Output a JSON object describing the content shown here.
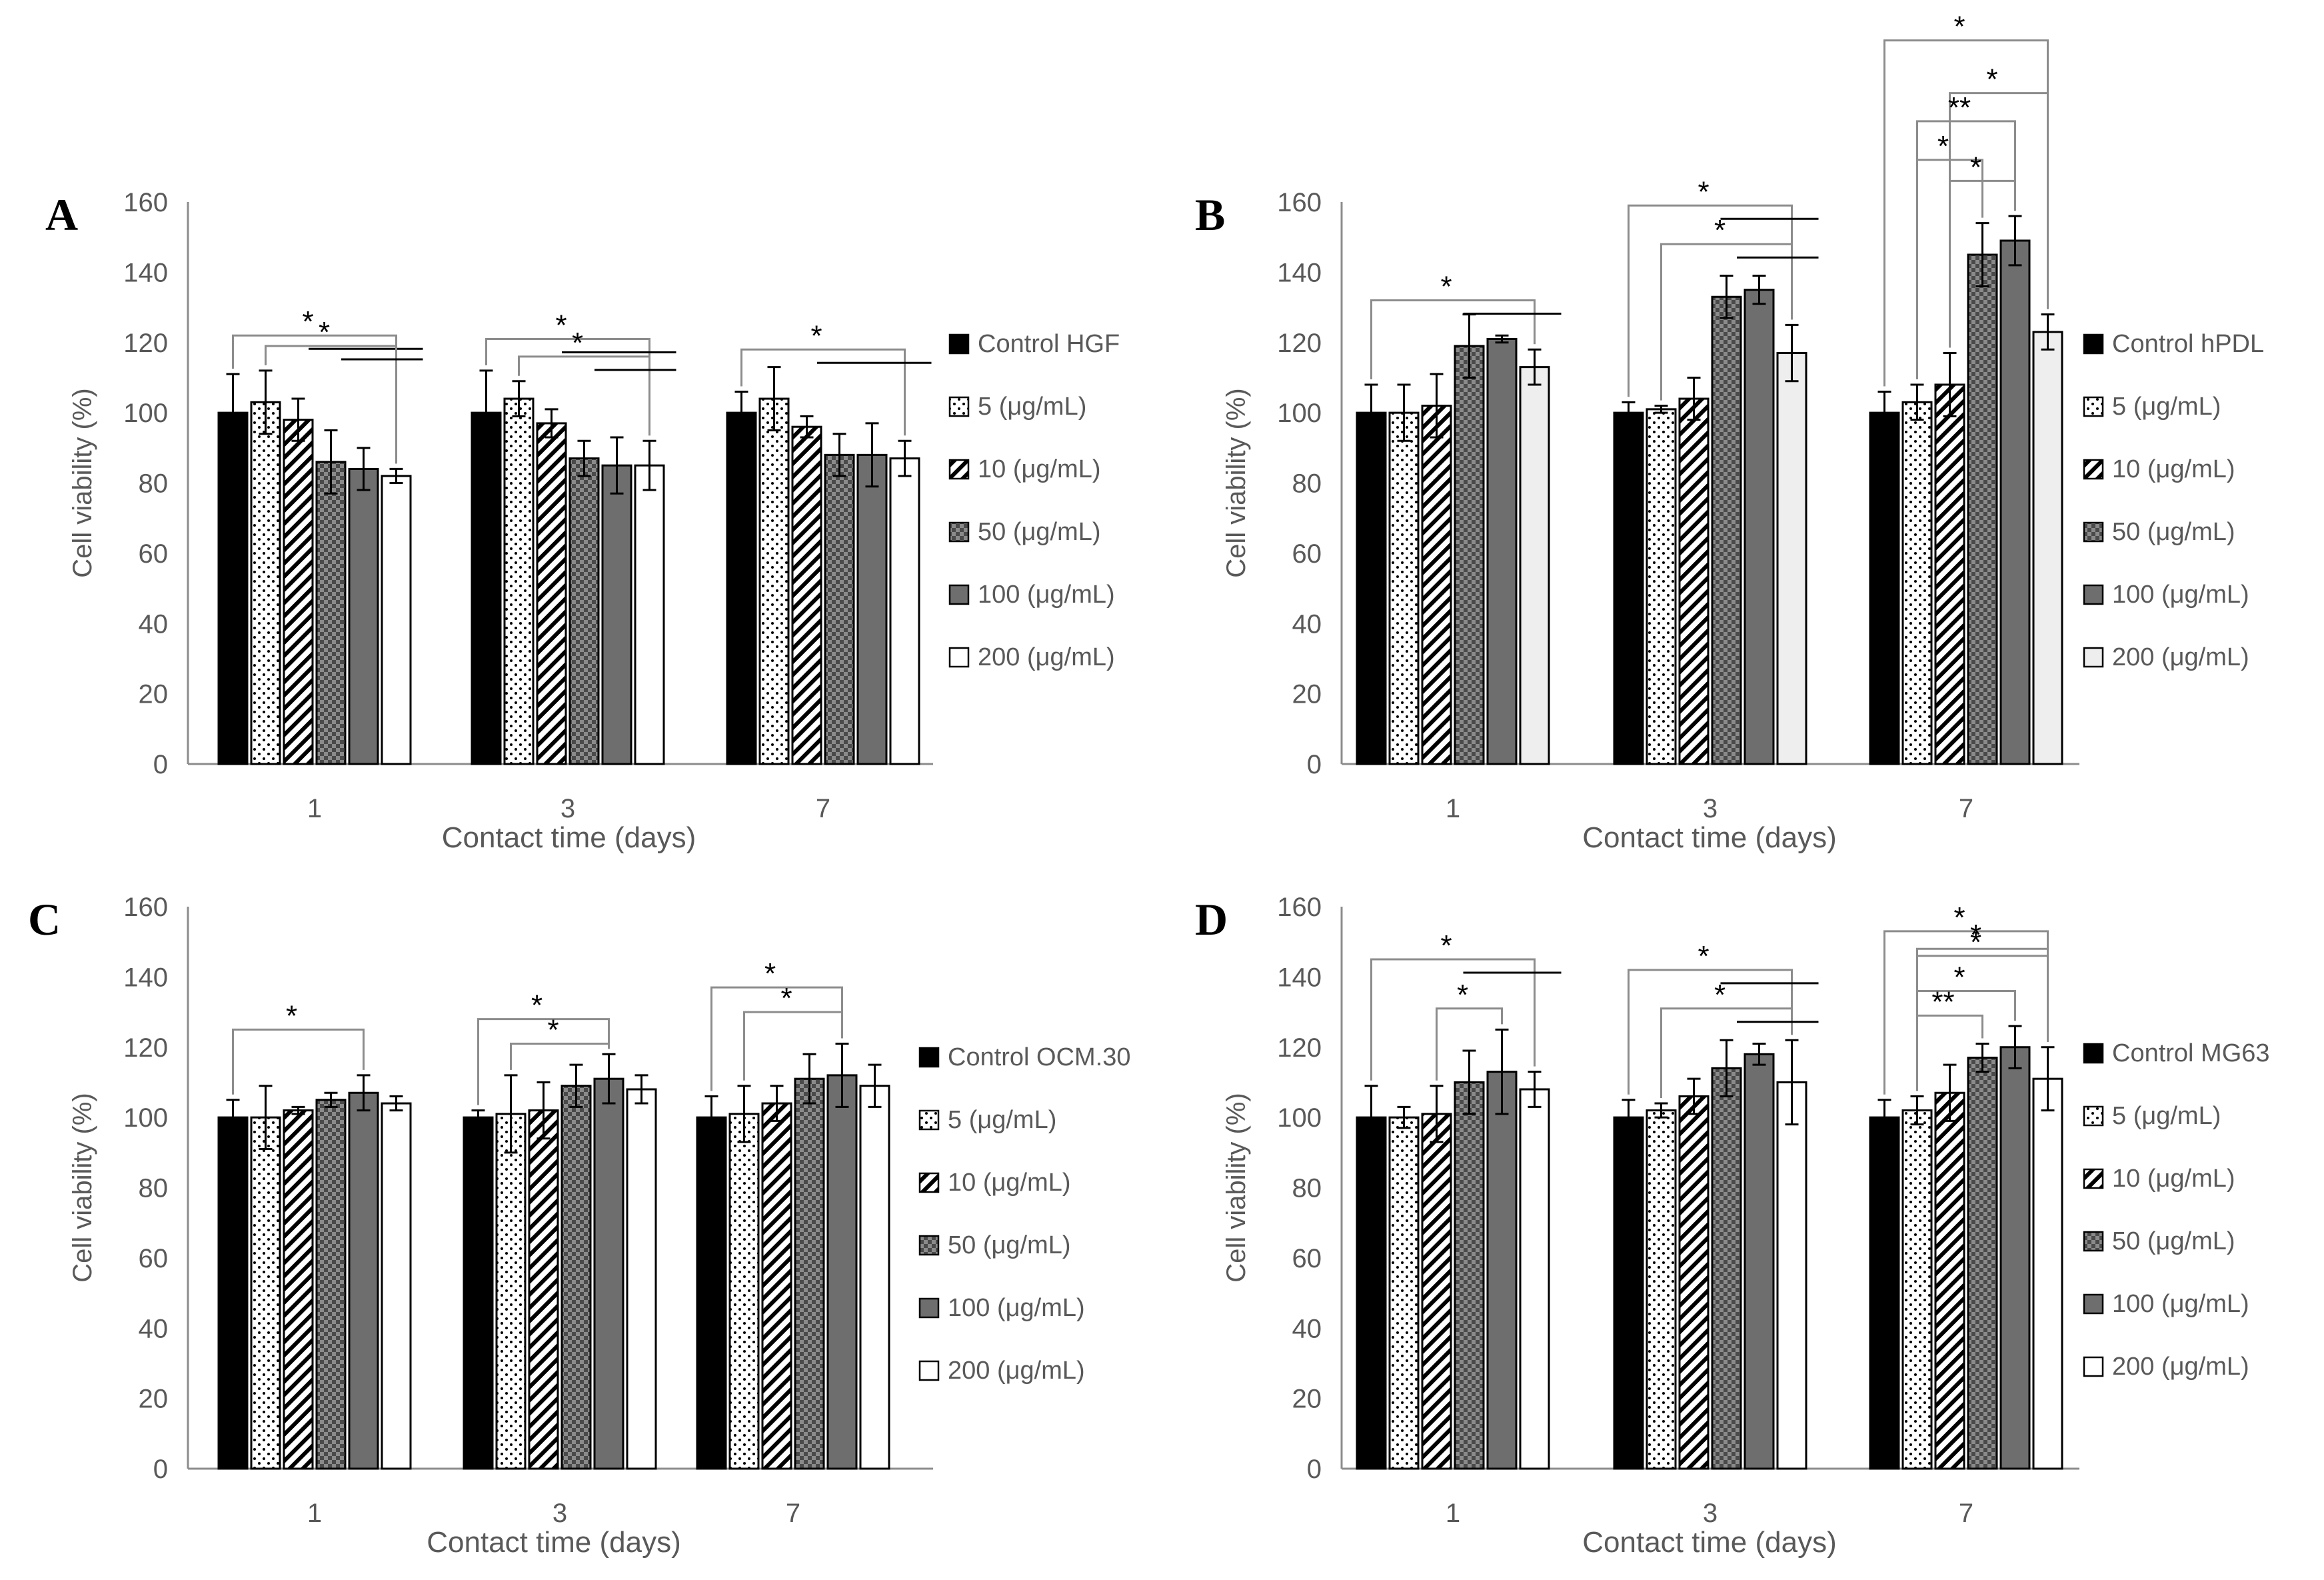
{
  "legend_colors": {
    "control": "#000000",
    "c5": "#ffffff",
    "c10": "#ffffff",
    "c50": "#8a8a8a",
    "c100": "#6e6e6e",
    "c200_default": "#ffffff",
    "c200_B": "#eeeeee"
  },
  "chart_data": [
    {
      "type": "bar",
      "panel": "A",
      "categories": [
        "1",
        "3",
        "7"
      ],
      "xlabel": "Contact time (days)",
      "ylabel": "Cell viability (%)",
      "ylim": [
        0,
        160
      ],
      "yticks": [
        "0",
        "20",
        "40",
        "60",
        "80",
        "100",
        "120",
        "140",
        "160"
      ],
      "legend": [
        "Control HGF",
        "5 (μg/mL)",
        "10 (μg/mL)",
        "50 (μg/mL)",
        "100 (μg/mL)",
        "200 (μg/mL)"
      ],
      "series": [
        {
          "name": "Control HGF",
          "values": [
            100,
            100,
            100
          ],
          "errors": [
            11,
            12,
            6
          ]
        },
        {
          "name": "5 (μg/mL)",
          "values": [
            103,
            104,
            104
          ],
          "errors": [
            9,
            5,
            9
          ]
        },
        {
          "name": "10 (μg/mL)",
          "values": [
            98,
            97,
            96
          ],
          "errors": [
            6,
            4,
            3
          ]
        },
        {
          "name": "50 (μg/mL)",
          "values": [
            86,
            87,
            88
          ],
          "errors": [
            9,
            5,
            6
          ]
        },
        {
          "name": "100 (μg/mL)",
          "values": [
            84,
            85,
            88
          ],
          "errors": [
            6,
            8,
            9
          ]
        },
        {
          "name": "200 (μg/mL)",
          "values": [
            82,
            85,
            87
          ],
          "errors": [
            2,
            7,
            5
          ]
        }
      ],
      "annotations": [
        "*",
        "*",
        "*",
        "*",
        "*"
      ]
    },
    {
      "type": "bar",
      "panel": "B",
      "categories": [
        "1",
        "3",
        "7"
      ],
      "xlabel": "Contact time (days)",
      "ylabel": "Cell viability (%)",
      "ylim": [
        0,
        160
      ],
      "yticks": [
        "0",
        "20",
        "40",
        "60",
        "80",
        "100",
        "120",
        "140",
        "160"
      ],
      "legend": [
        "Control hPDL",
        "5 (μg/mL)",
        "10 (μg/mL)",
        "50 (μg/mL)",
        "100 (μg/mL)",
        "200 (μg/mL)"
      ],
      "series": [
        {
          "name": "Control hPDL",
          "values": [
            100,
            100,
            100
          ],
          "errors": [
            8,
            3,
            6
          ]
        },
        {
          "name": "5 (μg/mL)",
          "values": [
            100,
            101,
            103
          ],
          "errors": [
            8,
            1,
            5
          ]
        },
        {
          "name": "10 (μg/mL)",
          "values": [
            102,
            104,
            108
          ],
          "errors": [
            9,
            6,
            9
          ]
        },
        {
          "name": "50 (μg/mL)",
          "values": [
            119,
            133,
            145
          ],
          "errors": [
            9,
            6,
            9
          ]
        },
        {
          "name": "100 (μg/mL)",
          "values": [
            121,
            135,
            149
          ],
          "errors": [
            1,
            4,
            7
          ]
        },
        {
          "name": "200 (μg/mL)",
          "values": [
            113,
            117,
            123
          ],
          "errors": [
            5,
            8,
            5
          ]
        }
      ],
      "annotations": [
        "*",
        "*",
        "*",
        "*",
        "*",
        "**",
        "*",
        "*"
      ]
    },
    {
      "type": "bar",
      "panel": "C",
      "categories": [
        "1",
        "3",
        "7"
      ],
      "xlabel": "Contact time (days)",
      "ylabel": "Cell viability (%)",
      "ylim": [
        0,
        160
      ],
      "yticks": [
        "0",
        "20",
        "40",
        "60",
        "80",
        "100",
        "120",
        "140",
        "160"
      ],
      "legend": [
        "Control OCM.30",
        "5 (μg/mL)",
        "10 (μg/mL)",
        "50 (μg/mL)",
        "100 (μg/mL)",
        "200 (μg/mL)"
      ],
      "series": [
        {
          "name": "Control OCM.30",
          "values": [
            100,
            100,
            100
          ],
          "errors": [
            5,
            2,
            6
          ]
        },
        {
          "name": "5 (μg/mL)",
          "values": [
            100,
            101,
            101
          ],
          "errors": [
            9,
            11,
            8
          ]
        },
        {
          "name": "10 (μg/mL)",
          "values": [
            102,
            102,
            104
          ],
          "errors": [
            1,
            8,
            5
          ]
        },
        {
          "name": "50 (μg/mL)",
          "values": [
            105,
            109,
            111
          ],
          "errors": [
            2,
            6,
            7
          ]
        },
        {
          "name": "100 (μg/mL)",
          "values": [
            107,
            111,
            112
          ],
          "errors": [
            5,
            7,
            9
          ]
        },
        {
          "name": "200 (μg/mL)",
          "values": [
            104,
            108,
            109
          ],
          "errors": [
            2,
            4,
            6
          ]
        }
      ],
      "annotations": [
        "*",
        "*",
        "*",
        "*",
        "*"
      ]
    },
    {
      "type": "bar",
      "panel": "D",
      "categories": [
        "1",
        "3",
        "7"
      ],
      "xlabel": "Contact time (days)",
      "ylabel": "Cell viability (%)",
      "ylim": [
        0,
        160
      ],
      "yticks": [
        "0",
        "20",
        "40",
        "60",
        "80",
        "100",
        "120",
        "140",
        "160"
      ],
      "legend": [
        "Control MG63",
        "5 (μg/mL)",
        "10 (μg/mL)",
        "50 (μg/mL)",
        "100 (μg/mL)",
        "200 (μg/mL)"
      ],
      "series": [
        {
          "name": "Control MG63",
          "values": [
            100,
            100,
            100
          ],
          "errors": [
            9,
            5,
            5
          ]
        },
        {
          "name": "5 (μg/mL)",
          "values": [
            100,
            102,
            102
          ],
          "errors": [
            3,
            2,
            4
          ]
        },
        {
          "name": "10 (μg/mL)",
          "values": [
            101,
            106,
            107
          ],
          "errors": [
            8,
            5,
            8
          ]
        },
        {
          "name": "50 (μg/mL)",
          "values": [
            110,
            114,
            117
          ],
          "errors": [
            9,
            8,
            4
          ]
        },
        {
          "name": "100 (μg/mL)",
          "values": [
            113,
            118,
            120
          ],
          "errors": [
            12,
            3,
            6
          ]
        },
        {
          "name": "200 (μg/mL)",
          "values": [
            108,
            110,
            111
          ],
          "errors": [
            5,
            12,
            9
          ]
        }
      ],
      "annotations": [
        "*",
        "*",
        "*",
        "*",
        "*",
        "*",
        "*",
        "**",
        "*"
      ]
    }
  ]
}
